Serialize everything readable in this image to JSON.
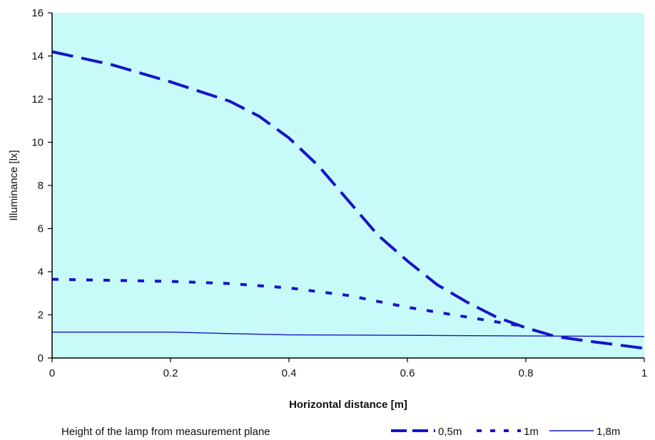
{
  "chart_data": {
    "type": "line",
    "xlabel": "Horizontal distance [m]",
    "ylabel": "Illuminance [lx]",
    "xlim": [
      0,
      1
    ],
    "ylim": [
      0,
      16
    ],
    "xticks": [
      0,
      0.2,
      0.4,
      0.6,
      0.8,
      1
    ],
    "xtick_labels": [
      "0",
      "0.2",
      "0.4",
      "0.6",
      "0.8",
      "1"
    ],
    "yticks": [
      0,
      2,
      4,
      6,
      8,
      10,
      12,
      14,
      16
    ],
    "ytick_labels": [
      "0",
      "2",
      "4",
      "6",
      "8",
      "10",
      "12",
      "14",
      "16"
    ],
    "grid": false,
    "plot_background": "#c8fafa",
    "line_color": "#1515c8",
    "legend_title": "Height of the lamp from measurement plane",
    "legend_position": "bottom",
    "series": [
      {
        "name": "0,5m",
        "style": "long-dash",
        "x": [
          0,
          0.1,
          0.2,
          0.3,
          0.35,
          0.4,
          0.45,
          0.5,
          0.55,
          0.6,
          0.65,
          0.7,
          0.75,
          0.8,
          0.85,
          0.9,
          1
        ],
        "y": [
          14.2,
          13.6,
          12.8,
          11.9,
          11.2,
          10.2,
          8.9,
          7.3,
          5.7,
          4.5,
          3.4,
          2.6,
          1.9,
          1.4,
          1.0,
          0.8,
          0.45
        ]
      },
      {
        "name": "1m",
        "style": "short-dash",
        "x": [
          0,
          0.1,
          0.2,
          0.3,
          0.4,
          0.5,
          0.6,
          0.7,
          0.8
        ],
        "y": [
          3.65,
          3.6,
          3.55,
          3.45,
          3.25,
          2.9,
          2.35,
          1.9,
          1.45
        ]
      },
      {
        "name": "1,8m",
        "style": "solid",
        "x": [
          0,
          0.2,
          0.3,
          0.4,
          0.6,
          0.8,
          1
        ],
        "y": [
          1.2,
          1.2,
          1.13,
          1.07,
          1.05,
          1.02,
          1.0
        ]
      }
    ]
  }
}
